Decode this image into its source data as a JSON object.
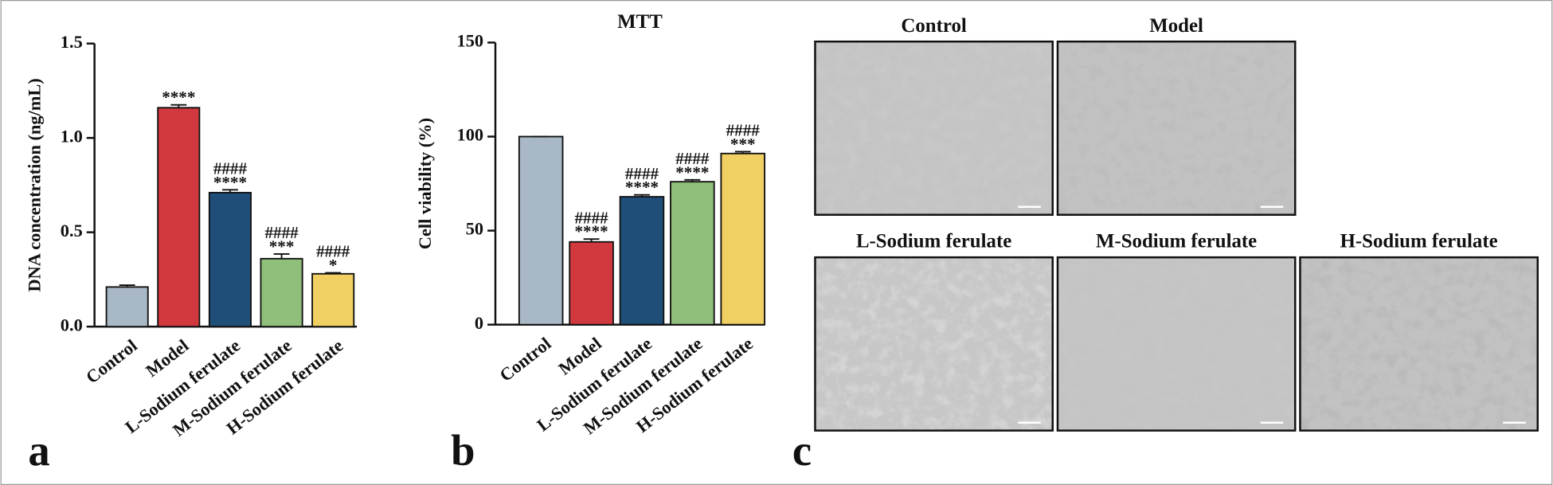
{
  "chart_data": [
    {
      "type": "bar",
      "ylabel": "DNA concentration (ng/mL)",
      "categories": [
        "Control",
        "Model",
        "L-Sodium ferulate",
        "M-Sodium ferulate",
        "H-Sodium ferulate"
      ],
      "values": [
        0.21,
        1.16,
        0.71,
        0.36,
        0.28
      ],
      "errors": [
        0.01,
        0.015,
        0.015,
        0.025,
        0.005
      ],
      "colors": [
        "#a9b8c6",
        "#d2393f",
        "#1f4e79",
        "#8fbf7a",
        "#f0cf63"
      ],
      "significance": [
        [],
        [
          "****"
        ],
        [
          "####",
          "****"
        ],
        [
          "####",
          "***"
        ],
        [
          "####",
          "*"
        ]
      ],
      "ylim": [
        0,
        1.5
      ],
      "yticks": [
        {
          "value": 0,
          "label": "0.0"
        },
        0.5,
        {
          "value": 1,
          "label": "1.0"
        },
        1.5
      ],
      "panel": "a"
    },
    {
      "type": "bar",
      "title": "MTT",
      "ylabel": "Cell viability (%)",
      "categories": [
        "Control",
        "Model",
        "L-Sodium ferulate",
        "M-Sodium ferulate",
        "H-Sodium ferulate"
      ],
      "values": [
        100,
        44,
        68,
        76,
        91
      ],
      "errors": [
        0,
        1.5,
        1,
        1,
        1
      ],
      "colors": [
        "#a9b8c6",
        "#d2393f",
        "#1f4e79",
        "#8fbf7a",
        "#f0cf63"
      ],
      "significance": [
        [],
        [
          "####",
          "****"
        ],
        [
          "####",
          "****"
        ],
        [
          "####",
          "****"
        ],
        [
          "####",
          "***"
        ]
      ],
      "ylim": [
        0,
        150
      ],
      "yticks": [
        0,
        50,
        100,
        150
      ],
      "panel": "b"
    }
  ],
  "micrographs": {
    "panel": "c",
    "images": [
      {
        "title": "Control"
      },
      {
        "title": "Model"
      },
      {
        "title": "L-Sodium ferulate"
      },
      {
        "title": "M-Sodium ferulate"
      },
      {
        "title": "H-Sodium ferulate"
      }
    ]
  }
}
